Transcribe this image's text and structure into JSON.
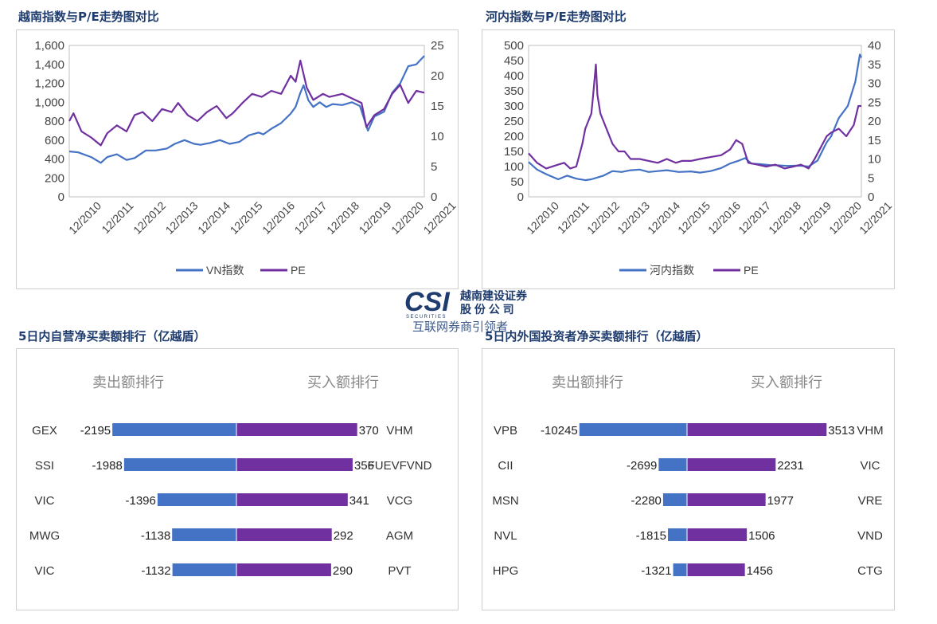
{
  "panels": {
    "vn_title": "越南指数与P/E走势图对比",
    "hanoi_title": "河内指数与P/E走势图对比",
    "prop_title": "5日内自营净买卖额排行（亿越盾）",
    "foreign_title": "5日内外国投资者净买卖额排行（亿越盾）"
  },
  "logo": {
    "mark": "CSI",
    "sub": "SECURITIES",
    "name_line1": "越南建设证券",
    "name_line2": "股 份 公 司",
    "watermark": "互联网券商引领者"
  },
  "colors": {
    "blue": "#4472c4",
    "purple": "#7030a0",
    "title": "#1f3c6e"
  },
  "chart_data": [
    {
      "type": "line",
      "id": "vn",
      "x_ticks": [
        "12/2010",
        "12/2011",
        "12/2012",
        "12/2013",
        "12/2014",
        "12/2015",
        "12/2016",
        "12/2017",
        "12/2018",
        "12/2019",
        "12/2020",
        "12/2021"
      ],
      "xlim": [
        2010.92,
        2021.95
      ],
      "y_left_ticks": [
        "0",
        "200",
        "400",
        "600",
        "800",
        "1,000",
        "1,200",
        "1,400",
        "1,600"
      ],
      "y_left_lim": [
        0,
        1600
      ],
      "y_right_ticks": [
        "0",
        "5",
        "10",
        "15",
        "20",
        "25"
      ],
      "y_right_lim": [
        0,
        25
      ],
      "legend": {
        "position": "bottom",
        "entries": [
          "VN指数",
          "PE"
        ]
      },
      "series": [
        {
          "name": "VN指数",
          "axis": "left",
          "color": "#4472c4",
          "points": [
            [
              2010.92,
              480
            ],
            [
              2011.2,
              470
            ],
            [
              2011.6,
              420
            ],
            [
              2011.9,
              360
            ],
            [
              2012.1,
              420
            ],
            [
              2012.4,
              450
            ],
            [
              2012.7,
              390
            ],
            [
              2012.95,
              410
            ],
            [
              2013.3,
              490
            ],
            [
              2013.6,
              490
            ],
            [
              2013.95,
              510
            ],
            [
              2014.2,
              560
            ],
            [
              2014.5,
              600
            ],
            [
              2014.8,
              560
            ],
            [
              2015.0,
              550
            ],
            [
              2015.3,
              570
            ],
            [
              2015.6,
              600
            ],
            [
              2015.9,
              560
            ],
            [
              2016.2,
              580
            ],
            [
              2016.5,
              650
            ],
            [
              2016.8,
              680
            ],
            [
              2016.95,
              660
            ],
            [
              2017.2,
              720
            ],
            [
              2017.5,
              780
            ],
            [
              2017.8,
              880
            ],
            [
              2017.95,
              950
            ],
            [
              2018.1,
              1100
            ],
            [
              2018.2,
              1180
            ],
            [
              2018.35,
              1020
            ],
            [
              2018.5,
              950
            ],
            [
              2018.7,
              1000
            ],
            [
              2018.9,
              950
            ],
            [
              2019.1,
              980
            ],
            [
              2019.4,
              970
            ],
            [
              2019.7,
              1000
            ],
            [
              2019.95,
              960
            ],
            [
              2020.2,
              700
            ],
            [
              2020.4,
              850
            ],
            [
              2020.7,
              900
            ],
            [
              2020.95,
              1100
            ],
            [
              2021.2,
              1200
            ],
            [
              2021.45,
              1380
            ],
            [
              2021.7,
              1400
            ],
            [
              2021.95,
              1490
            ]
          ]
        },
        {
          "name": "PE",
          "axis": "right",
          "color": "#7030a0",
          "points": [
            [
              2010.92,
              12.5
            ],
            [
              2011.05,
              13.8
            ],
            [
              2011.3,
              10.8
            ],
            [
              2011.6,
              9.8
            ],
            [
              2011.9,
              8.5
            ],
            [
              2012.1,
              10.5
            ],
            [
              2012.4,
              11.8
            ],
            [
              2012.7,
              10.8
            ],
            [
              2012.95,
              13.5
            ],
            [
              2013.2,
              14
            ],
            [
              2013.5,
              12.5
            ],
            [
              2013.8,
              14.5
            ],
            [
              2014.1,
              14
            ],
            [
              2014.3,
              15.5
            ],
            [
              2014.6,
              13.5
            ],
            [
              2014.9,
              12.5
            ],
            [
              2015.2,
              14
            ],
            [
              2015.5,
              15
            ],
            [
              2015.8,
              13
            ],
            [
              2016.0,
              13.8
            ],
            [
              2016.3,
              15.5
            ],
            [
              2016.6,
              17
            ],
            [
              2016.9,
              16.5
            ],
            [
              2017.2,
              17.5
            ],
            [
              2017.5,
              17
            ],
            [
              2017.8,
              20
            ],
            [
              2017.95,
              19
            ],
            [
              2018.1,
              22.5
            ],
            [
              2018.3,
              18
            ],
            [
              2018.5,
              16
            ],
            [
              2018.8,
              17
            ],
            [
              2019.0,
              16.5
            ],
            [
              2019.4,
              17
            ],
            [
              2019.8,
              16
            ],
            [
              2020.0,
              15.5
            ],
            [
              2020.15,
              11.5
            ],
            [
              2020.4,
              13.5
            ],
            [
              2020.7,
              14.5
            ],
            [
              2020.95,
              17
            ],
            [
              2021.2,
              18.5
            ],
            [
              2021.45,
              15.5
            ],
            [
              2021.7,
              17.5
            ],
            [
              2021.95,
              17.2
            ]
          ]
        }
      ]
    },
    {
      "type": "line",
      "id": "hanoi",
      "x_ticks": [
        "12/2010",
        "12/2011",
        "12/2012",
        "12/2013",
        "12/2014",
        "12/2015",
        "12/2016",
        "12/2017",
        "12/2018",
        "12/2019",
        "12/2020",
        "12/2021"
      ],
      "xlim": [
        2010.92,
        2021.95
      ],
      "y_left_ticks": [
        "0",
        "50",
        "100",
        "150",
        "200",
        "250",
        "300",
        "350",
        "400",
        "450",
        "500"
      ],
      "y_left_lim": [
        0,
        500
      ],
      "y_right_ticks": [
        "0",
        "5",
        "10",
        "15",
        "20",
        "25",
        "30",
        "35",
        "40"
      ],
      "y_right_lim": [
        0,
        40
      ],
      "legend": {
        "position": "bottom",
        "entries": [
          "河内指数",
          "PE"
        ]
      },
      "series": [
        {
          "name": "河内指数",
          "axis": "left",
          "color": "#4472c4",
          "points": [
            [
              2010.92,
              115
            ],
            [
              2011.2,
              90
            ],
            [
              2011.5,
              75
            ],
            [
              2011.9,
              58
            ],
            [
              2012.2,
              70
            ],
            [
              2012.5,
              60
            ],
            [
              2012.8,
              55
            ],
            [
              2013.0,
              58
            ],
            [
              2013.4,
              70
            ],
            [
              2013.7,
              85
            ],
            [
              2014.0,
              82
            ],
            [
              2014.3,
              88
            ],
            [
              2014.6,
              90
            ],
            [
              2014.9,
              82
            ],
            [
              2015.2,
              85
            ],
            [
              2015.5,
              88
            ],
            [
              2015.9,
              82
            ],
            [
              2016.3,
              84
            ],
            [
              2016.6,
              80
            ],
            [
              2016.95,
              85
            ],
            [
              2017.3,
              95
            ],
            [
              2017.6,
              110
            ],
            [
              2017.9,
              120
            ],
            [
              2018.1,
              128
            ],
            [
              2018.3,
              110
            ],
            [
              2018.6,
              108
            ],
            [
              2018.9,
              105
            ],
            [
              2019.2,
              104
            ],
            [
              2019.5,
              102
            ],
            [
              2019.8,
              103
            ],
            [
              2020.0,
              102
            ],
            [
              2020.2,
              100
            ],
            [
              2020.5,
              120
            ],
            [
              2020.8,
              180
            ],
            [
              2020.95,
              200
            ],
            [
              2021.2,
              260
            ],
            [
              2021.5,
              300
            ],
            [
              2021.75,
              380
            ],
            [
              2021.9,
              470
            ],
            [
              2021.95,
              460
            ]
          ]
        },
        {
          "name": "PE",
          "axis": "right",
          "color": "#7030a0",
          "points": [
            [
              2010.92,
              11.5
            ],
            [
              2011.2,
              9
            ],
            [
              2011.5,
              7.5
            ],
            [
              2011.9,
              8.5
            ],
            [
              2012.1,
              9
            ],
            [
              2012.3,
              7.5
            ],
            [
              2012.5,
              8
            ],
            [
              2012.7,
              14
            ],
            [
              2012.8,
              18
            ],
            [
              2012.9,
              20
            ],
            [
              2013.0,
              22
            ],
            [
              2013.05,
              26
            ],
            [
              2013.15,
              35
            ],
            [
              2013.2,
              27
            ],
            [
              2013.3,
              22
            ],
            [
              2013.5,
              18
            ],
            [
              2013.7,
              14
            ],
            [
              2013.9,
              12
            ],
            [
              2014.1,
              12
            ],
            [
              2014.3,
              10
            ],
            [
              2014.6,
              10
            ],
            [
              2014.9,
              9.5
            ],
            [
              2015.2,
              9
            ],
            [
              2015.5,
              10
            ],
            [
              2015.8,
              9
            ],
            [
              2016.0,
              9.5
            ],
            [
              2016.3,
              9.5
            ],
            [
              2016.6,
              10
            ],
            [
              2016.95,
              10.5
            ],
            [
              2017.3,
              11
            ],
            [
              2017.6,
              12.5
            ],
            [
              2017.8,
              15
            ],
            [
              2018.0,
              14
            ],
            [
              2018.2,
              9
            ],
            [
              2018.5,
              8.5
            ],
            [
              2018.8,
              8
            ],
            [
              2019.1,
              8.5
            ],
            [
              2019.4,
              7.5
            ],
            [
              2019.7,
              8
            ],
            [
              2019.95,
              8.5
            ],
            [
              2020.2,
              7.5
            ],
            [
              2020.4,
              10
            ],
            [
              2020.6,
              13
            ],
            [
              2020.8,
              16
            ],
            [
              2020.95,
              17
            ],
            [
              2021.2,
              18
            ],
            [
              2021.45,
              16
            ],
            [
              2021.7,
              19
            ],
            [
              2021.85,
              24
            ],
            [
              2021.95,
              24
            ]
          ]
        }
      ]
    },
    {
      "type": "bar",
      "id": "proprietary",
      "orientation": "horizontal-diverging",
      "sell_header": "卖出额排行",
      "buy_header": "买入额排行",
      "rows": [
        {
          "sell_stock": "GEX",
          "sell_value": -2195,
          "buy_value": 370,
          "buy_stock": "VHM"
        },
        {
          "sell_stock": "SSI",
          "sell_value": -1988,
          "buy_value": 356,
          "buy_stock": "FUEVFVND"
        },
        {
          "sell_stock": "VIC",
          "sell_value": -1396,
          "buy_value": 341,
          "buy_stock": "VCG"
        },
        {
          "sell_stock": "MWG",
          "sell_value": -1138,
          "buy_value": 292,
          "buy_stock": "AGM"
        },
        {
          "sell_stock": "VIC",
          "sell_value": -1132,
          "buy_value": 290,
          "buy_stock": "PVT"
        }
      ]
    },
    {
      "type": "bar",
      "id": "foreign",
      "orientation": "horizontal-diverging",
      "sell_header": "卖出额排行",
      "buy_header": "买入额排行",
      "rows": [
        {
          "sell_stock": "VPB",
          "sell_value": -10245,
          "buy_value": 3513,
          "buy_stock": "VHM"
        },
        {
          "sell_stock": "CII",
          "sell_value": -2699,
          "buy_value": 2231,
          "buy_stock": "VIC"
        },
        {
          "sell_stock": "MSN",
          "sell_value": -2280,
          "buy_value": 1977,
          "buy_stock": "VRE"
        },
        {
          "sell_stock": "NVL",
          "sell_value": -1815,
          "buy_value": 1506,
          "buy_stock": "VND"
        },
        {
          "sell_stock": "HPG",
          "sell_value": -1321,
          "buy_value": 1456,
          "buy_stock": "CTG"
        }
      ]
    }
  ]
}
